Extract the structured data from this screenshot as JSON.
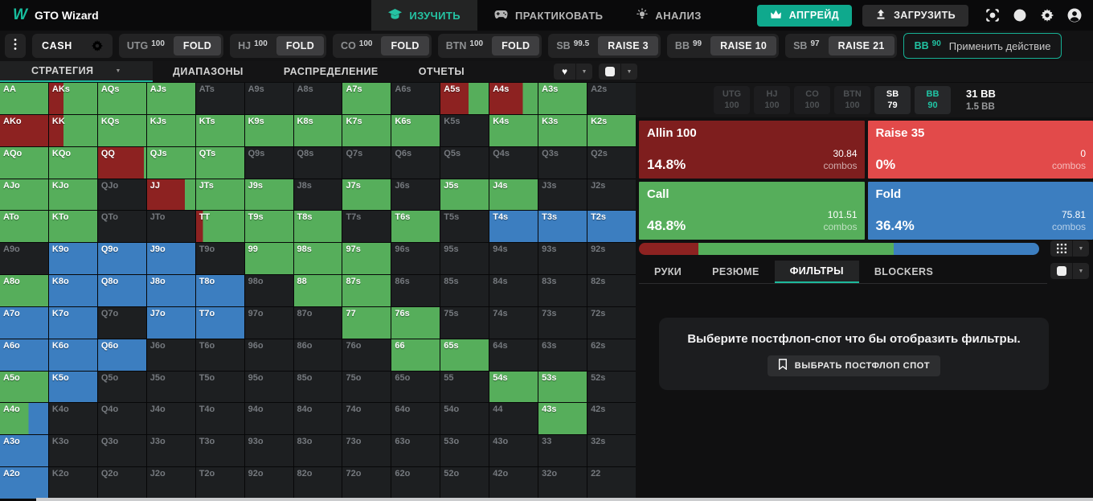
{
  "app": {
    "logo": "W",
    "title": "GTO Wizard"
  },
  "header": {
    "nav": [
      {
        "id": "study",
        "label": "ИЗУЧИТЬ",
        "icon": "graduation-cap-icon",
        "active": true
      },
      {
        "id": "practice",
        "label": "ПРАКТИКОВАТЬ",
        "icon": "gamepad-icon",
        "active": false
      },
      {
        "id": "analyze",
        "label": "АНАЛИЗ",
        "icon": "lightbulb-icon",
        "active": false
      }
    ],
    "buttons": [
      {
        "id": "upgrade",
        "label": "АПГРЕЙД",
        "icon": "crown-icon",
        "style": "teal"
      },
      {
        "id": "upload",
        "label": "ЗАГРУЗИТЬ",
        "icon": "upload-icon",
        "style": "dark"
      }
    ],
    "icons": [
      "scan-icon",
      "help-icon",
      "settings-icon",
      "account-icon"
    ]
  },
  "action_line": {
    "game_type": "CASH",
    "spots": [
      {
        "position": "UTG",
        "stack": "100",
        "action": "FOLD"
      },
      {
        "position": "HJ",
        "stack": "100",
        "action": "FOLD"
      },
      {
        "position": "CO",
        "stack": "100",
        "action": "FOLD"
      },
      {
        "position": "BTN",
        "stack": "100",
        "action": "FOLD"
      },
      {
        "position": "SB",
        "stack": "99.5",
        "action": "RAISE 3"
      },
      {
        "position": "BB",
        "stack": "99",
        "action": "RAISE 10"
      },
      {
        "position": "SB",
        "stack": "97",
        "action": "RAISE 21"
      }
    ],
    "apply": {
      "position": "BB",
      "stack": "90",
      "label": "Применить действие"
    }
  },
  "view_tabs": [
    {
      "id": "strategy",
      "label": "СТРАТЕГИЯ",
      "active": true
    },
    {
      "id": "ranges",
      "label": "ДИАПАЗОНЫ",
      "active": false
    },
    {
      "id": "distribution",
      "label": "РАСПРЕДЕЛЕНИЕ",
      "active": false
    },
    {
      "id": "reports",
      "label": "ОТЧЕТЫ",
      "active": false
    }
  ],
  "legend": {
    "g": "call",
    "b": "fold",
    "r": "allin",
    "d": "none"
  },
  "colors": {
    "call": "#56ae5b",
    "fold": "#3c7ec0",
    "allin": "#8d2221",
    "none": "#1d1f21",
    "accent": "#14b89a"
  },
  "grid_rows": [
    [
      "AA:g",
      "AKs:r30g",
      "AQs:g",
      "AJs:g",
      "ATs:d",
      "A9s:d",
      "A8s:d",
      "A7s:g",
      "A6s:d",
      "A5s:r58g",
      "A4s:r69g",
      "A3s:g",
      "A2s:d"
    ],
    [
      "AKo:r",
      "KK:r30g",
      "KQs:g",
      "KJs:g",
      "KTs:g",
      "K9s:g",
      "K8s:g",
      "K7s:g",
      "K6s:g",
      "K5s:d",
      "K4s:g",
      "K3s:g",
      "K2s:g"
    ],
    [
      "AQo:g",
      "KQo:g",
      "QQ:r95g",
      "QJs:g",
      "QTs:g",
      "Q9s:d",
      "Q8s:d",
      "Q7s:d",
      "Q6s:d",
      "Q5s:d",
      "Q4s:d",
      "Q3s:d",
      "Q2s:d"
    ],
    [
      "AJo:g",
      "KJo:g",
      "QJo:d",
      "JJ:r78g",
      "JTs:g",
      "J9s:g",
      "J8s:d",
      "J7s:g",
      "J6s:d",
      "J5s:g",
      "J4s:g",
      "J3s:d",
      "J2s:d"
    ],
    [
      "ATo:g",
      "KTo:g",
      "QTo:d",
      "JTo:d",
      "TT:r14g",
      "T9s:g",
      "T8s:g",
      "T7s:d",
      "T6s:g",
      "T5s:d",
      "T4s:b",
      "T3s:b",
      "T2s:b"
    ],
    [
      "A9o:d",
      "K9o:b",
      "Q9o:b",
      "J9o:b",
      "T9o:d",
      "99:g",
      "98s:g",
      "97s:g",
      "96s:d",
      "95s:d",
      "94s:d",
      "93s:d",
      "92s:d"
    ],
    [
      "A8o:g",
      "K8o:b",
      "Q8o:b",
      "J8o:b",
      "T8o:b",
      "98o:d",
      "88:g",
      "87s:g",
      "86s:d",
      "85s:d",
      "84s:d",
      "83s:d",
      "82s:d"
    ],
    [
      "A7o:b",
      "K7o:b",
      "Q7o:d",
      "J7o:b",
      "T7o:b",
      "97o:d",
      "87o:d",
      "77:g",
      "76s:g",
      "75s:d",
      "74s:d",
      "73s:d",
      "72s:d"
    ],
    [
      "A6o:b",
      "K6o:b",
      "Q6o:b",
      "J6o:d",
      "T6o:d",
      "96o:d",
      "86o:d",
      "76o:d",
      "66:g",
      "65s:g",
      "64s:d",
      "63s:d",
      "62s:d"
    ],
    [
      "A5o:g",
      "K5o:b",
      "Q5o:d",
      "J5o:d",
      "T5o:d",
      "95o:d",
      "85o:d",
      "75o:d",
      "65o:d",
      "55:d",
      "54s:g",
      "53s:g",
      "52s:d"
    ],
    [
      "A4o:g59b",
      "K4o:d",
      "Q4o:d",
      "J4o:d",
      "T4o:d",
      "94o:d",
      "84o:d",
      "74o:d",
      "64o:d",
      "54o:d",
      "44:d",
      "43s:g",
      "42s:d"
    ],
    [
      "A3o:b",
      "K3o:d",
      "Q3o:d",
      "J3o:d",
      "T3o:d",
      "93o:d",
      "83o:d",
      "73o:d",
      "63o:d",
      "53o:d",
      "43o:d",
      "33:d",
      "32s:d"
    ],
    [
      "A2o:b",
      "K2o:d",
      "Q2o:d",
      "J2o:d",
      "T2o:d",
      "92o:d",
      "82o:d",
      "72o:d",
      "62o:d",
      "52o:d",
      "42o:d",
      "32o:d",
      "22:d"
    ]
  ],
  "panel": {
    "positions": [
      {
        "label": "UTG",
        "stack": "100",
        "state": "dim"
      },
      {
        "label": "HJ",
        "stack": "100",
        "state": "dim"
      },
      {
        "label": "CO",
        "stack": "100",
        "state": "dim"
      },
      {
        "label": "BTN",
        "stack": "100",
        "state": "dim"
      },
      {
        "label": "SB",
        "stack": "79",
        "state": "active"
      },
      {
        "label": "BB",
        "stack": "90",
        "state": "hero"
      }
    ],
    "pot": {
      "main": "31 BB",
      "sub": "1.5 BB"
    },
    "actions": [
      {
        "name": "Allin 100",
        "pct": "14.8%",
        "combos": "30.84",
        "combos_label": "combos",
        "color": "#7e1e1e"
      },
      {
        "name": "Raise 35",
        "pct": "0%",
        "combos": "0",
        "combos_label": "combos",
        "color": "#e24a4a"
      },
      {
        "name": "Call",
        "pct": "48.8%",
        "combos": "101.51",
        "combos_label": "combos",
        "color": "#56ae5b"
      },
      {
        "name": "Fold",
        "pct": "36.4%",
        "combos": "75.81",
        "combos_label": "combos",
        "color": "#3c7ec0"
      }
    ],
    "strategy_bar": [
      {
        "action": "allin",
        "color": "#8d2221",
        "pct": 14.8
      },
      {
        "action": "call",
        "color": "#56ae5b",
        "pct": 48.8
      },
      {
        "action": "fold",
        "color": "#3c7ec0",
        "pct": 36.4
      }
    ],
    "tabs": [
      {
        "id": "hands",
        "label": "РУКИ",
        "active": false
      },
      {
        "id": "summary",
        "label": "РЕЗЮМЕ",
        "active": false
      },
      {
        "id": "filters",
        "label": "ФИЛЬТРЫ",
        "active": true
      },
      {
        "id": "blockers",
        "label": "BLOCKERS",
        "active": false
      }
    ],
    "filters_empty": {
      "message": "Выберите постфлоп-спот что бы отобразить фильтры.",
      "button_label": "ВЫБРАТЬ ПОСТФЛОП СПОТ"
    }
  }
}
